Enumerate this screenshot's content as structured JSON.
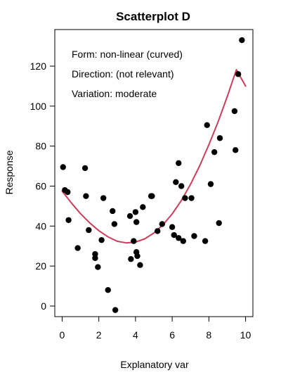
{
  "chart_data": {
    "type": "scatter",
    "title": "Scatterplot D",
    "xlabel": "Explanatory var",
    "ylabel": "Response",
    "xlim": [
      -0.4,
      10.4
    ],
    "ylim": [
      -5.3,
      138.3
    ],
    "x_ticks": [
      0,
      2,
      4,
      6,
      8,
      10
    ],
    "y_ticks": [
      0,
      20,
      40,
      60,
      80,
      100,
      120
    ],
    "grid": false,
    "annotations": [
      "Form: non-linear (curved)",
      "Direction: (not relevant)",
      "Variation: moderate"
    ],
    "series": [
      {
        "type": "scatter",
        "color": "#000000",
        "points": [
          [
            0.05,
            69.5
          ],
          [
            0.15,
            58
          ],
          [
            0.3,
            57
          ],
          [
            0.35,
            43
          ],
          [
            0.85,
            29
          ],
          [
            1.25,
            69
          ],
          [
            1.3,
            55
          ],
          [
            1.45,
            38
          ],
          [
            1.8,
            26
          ],
          [
            1.8,
            24
          ],
          [
            1.95,
            19.5
          ],
          [
            2.15,
            33
          ],
          [
            2.25,
            54
          ],
          [
            2.5,
            8
          ],
          [
            2.75,
            47.5
          ],
          [
            2.85,
            41
          ],
          [
            2.9,
            -2
          ],
          [
            3.7,
            45
          ],
          [
            3.75,
            23.5
          ],
          [
            3.9,
            32.5
          ],
          [
            4.0,
            47
          ],
          [
            4.05,
            42
          ],
          [
            4.05,
            27
          ],
          [
            4.1,
            25
          ],
          [
            4.25,
            20.5
          ],
          [
            4.4,
            49.5
          ],
          [
            4.85,
            55
          ],
          [
            4.9,
            55
          ],
          [
            5.2,
            37.5
          ],
          [
            5.45,
            41
          ],
          [
            6.0,
            39.5
          ],
          [
            6.1,
            35.5
          ],
          [
            6.2,
            62
          ],
          [
            6.35,
            34
          ],
          [
            6.35,
            71.5
          ],
          [
            6.5,
            60
          ],
          [
            6.6,
            32.5
          ],
          [
            6.7,
            54
          ],
          [
            7.05,
            54
          ],
          [
            7.2,
            35
          ],
          [
            7.8,
            32.5
          ],
          [
            7.9,
            90.5
          ],
          [
            8.1,
            61
          ],
          [
            8.3,
            77
          ],
          [
            8.55,
            41.5
          ],
          [
            8.6,
            84
          ],
          [
            9.4,
            97.5
          ],
          [
            9.45,
            78
          ],
          [
            9.6,
            116
          ],
          [
            9.8,
            133
          ]
        ]
      },
      {
        "type": "line",
        "color": "#cc3d5c",
        "x": [
          0,
          0.5,
          1,
          1.5,
          2,
          2.5,
          3,
          3.5,
          4,
          4.5,
          5,
          5.5,
          6,
          6.5,
          7,
          7.5,
          8,
          8.5,
          9,
          9.5,
          10
        ],
        "y": [
          57.5,
          51.6,
          46.2,
          41.6,
          37.7,
          34.6,
          32.4,
          31.6,
          32.0,
          33.6,
          36.5,
          40.7,
          46.1,
          52.8,
          60.9,
          70.2,
          80.7,
          92.1,
          104.7,
          118.2,
          110.0
        ]
      }
    ]
  }
}
